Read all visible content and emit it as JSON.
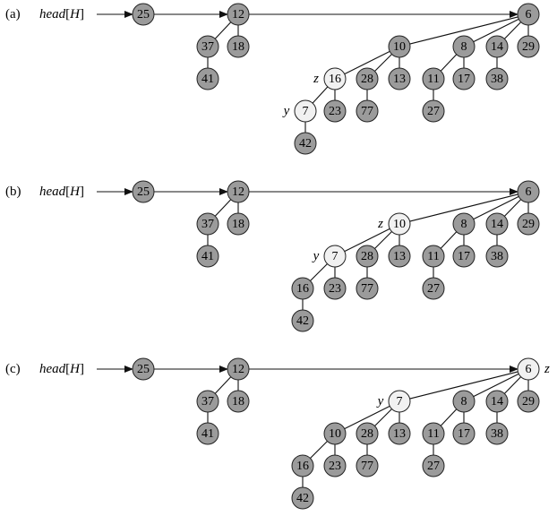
{
  "panels": [
    {
      "label": "(a)",
      "pointer": {
        "name": "head",
        "arg": "H"
      },
      "nodes": [
        {
          "key": "25",
          "light": false
        },
        {
          "key": "12",
          "light": false
        },
        {
          "key": "37",
          "light": false
        },
        {
          "key": "18",
          "light": false
        },
        {
          "key": "41",
          "light": false
        },
        {
          "key": "6",
          "light": false
        },
        {
          "key": "10",
          "light": false
        },
        {
          "key": "8",
          "light": false
        },
        {
          "key": "14",
          "light": false
        },
        {
          "key": "29",
          "light": false
        },
        {
          "key": "16",
          "light": true,
          "tag": "z"
        },
        {
          "key": "28",
          "light": false
        },
        {
          "key": "13",
          "light": false
        },
        {
          "key": "11",
          "light": false
        },
        {
          "key": "17",
          "light": false
        },
        {
          "key": "38",
          "light": false
        },
        {
          "key": "7",
          "light": true,
          "tag": "y"
        },
        {
          "key": "23",
          "light": false
        },
        {
          "key": "77",
          "light": false
        },
        {
          "key": "27",
          "light": false
        },
        {
          "key": "42",
          "light": false
        }
      ]
    },
    {
      "label": "(b)",
      "pointer": {
        "name": "head",
        "arg": "H"
      },
      "nodes": [
        {
          "key": "25",
          "light": false
        },
        {
          "key": "12",
          "light": false
        },
        {
          "key": "37",
          "light": false
        },
        {
          "key": "18",
          "light": false
        },
        {
          "key": "41",
          "light": false
        },
        {
          "key": "6",
          "light": false
        },
        {
          "key": "10",
          "light": true,
          "tag": "z"
        },
        {
          "key": "8",
          "light": false
        },
        {
          "key": "14",
          "light": false
        },
        {
          "key": "29",
          "light": false
        },
        {
          "key": "7",
          "light": true,
          "tag": "y"
        },
        {
          "key": "28",
          "light": false
        },
        {
          "key": "13",
          "light": false
        },
        {
          "key": "11",
          "light": false
        },
        {
          "key": "17",
          "light": false
        },
        {
          "key": "38",
          "light": false
        },
        {
          "key": "16",
          "light": false
        },
        {
          "key": "23",
          "light": false
        },
        {
          "key": "77",
          "light": false
        },
        {
          "key": "27",
          "light": false
        },
        {
          "key": "42",
          "light": false
        }
      ]
    },
    {
      "label": "(c)",
      "pointer": {
        "name": "head",
        "arg": "H"
      },
      "nodes": [
        {
          "key": "25",
          "light": false
        },
        {
          "key": "12",
          "light": false
        },
        {
          "key": "37",
          "light": false
        },
        {
          "key": "18",
          "light": false
        },
        {
          "key": "41",
          "light": false
        },
        {
          "key": "6",
          "light": true,
          "tag": "z"
        },
        {
          "key": "7",
          "light": true,
          "tag": "y"
        },
        {
          "key": "8",
          "light": false
        },
        {
          "key": "14",
          "light": false
        },
        {
          "key": "29",
          "light": false
        },
        {
          "key": "10",
          "light": false
        },
        {
          "key": "28",
          "light": false
        },
        {
          "key": "13",
          "light": false
        },
        {
          "key": "11",
          "light": false
        },
        {
          "key": "17",
          "light": false
        },
        {
          "key": "38",
          "light": false
        },
        {
          "key": "16",
          "light": false
        },
        {
          "key": "23",
          "light": false
        },
        {
          "key": "77",
          "light": false
        },
        {
          "key": "27",
          "light": false
        },
        {
          "key": "42",
          "light": false
        }
      ]
    }
  ]
}
